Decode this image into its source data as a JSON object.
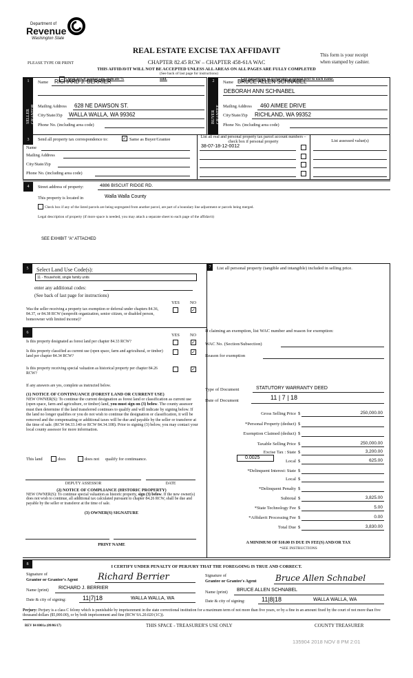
{
  "header": {
    "logo_line1": "Department of",
    "logo_line2": "Revenue",
    "logo_line3": "Washington State",
    "title": "REAL ESTATE EXCISE TAX AFFIDAVIT",
    "chapter": "CHAPTER 82.45 RCW – CHAPTER 458-61A WAC",
    "please": "PLEASE TYPE OR PRINT",
    "receipt1": "This form is your receipt",
    "receipt2": "when stamped by cashier.",
    "warning": "THIS AFFIDAVIT WILL NOT BE ACCEPTED UNLESS ALL AREAS ON ALL PAGES ARE FULLY COMPLETED",
    "see_back": "(See back of last page for instructions)",
    "partial": "Check box if partial sale, indicate %",
    "sold": "sold.",
    "percentage": "List percentage of ownership acquired next to each name."
  },
  "seller": {
    "num": "1",
    "side": "SELLER GRANTOR",
    "name_label": "Name",
    "name": "RICHARD J. BERRIER",
    "mail_label": "Mailing Address",
    "mail": "628 NE DAWSON ST.",
    "city_label": "City/State/Zip",
    "city": "WALLA WALLA, WA  99362",
    "phone_label": "Phone No. (including area code)"
  },
  "buyer": {
    "num": "2",
    "side": "BUYER GRANTEE",
    "name_label": "Name",
    "name": "BRUCE ALLEN SCHNABEL",
    "name2": "DEBORAH ANN SCHNABEL",
    "mail_label": "Mailing Address",
    "mail": "460 AIMEE DRIVE",
    "city_label": "City/State/Zip",
    "city": "RICHLAND, WA  99352",
    "phone_label": "Phone No. (including area code)"
  },
  "sec3": {
    "num": "3",
    "send": "Send all property tax correspondence to:",
    "same": "Same as Buyer/Grantee",
    "same_checked": true,
    "name": "Name",
    "mail": "Mailing Address",
    "city": "City/State/Zip",
    "phone": "Phone No. (including area code)",
    "parcel_header": "List all real and personal property tax parcel account numbers – check box if personal property",
    "assessed_header": "List assessed value(s)",
    "parcels": [
      "38-07-18-12-0012",
      "",
      "",
      ""
    ]
  },
  "sec4": {
    "num": "4",
    "street_label": "Street address of property:",
    "street": "4886 BISCUIT RIDGE RD.",
    "located_label": "This property is located in",
    "county": "Walla Walla County",
    "segregate": "Check box if any of the listed parcels are being segregated from another parcel, are part of a boundary line adjustment or parcels being merged.",
    "legal_label": "Legal description of property (if more space is needed, you may attach a separate sheet to each page of the affidavit)",
    "legal": "SEE EXHIBIT \"A\" ATTACHED"
  },
  "sec5": {
    "num": "5",
    "label": "Select Land Use Code(s):",
    "code": "11 - Household, single family units",
    "additional": "enter any additional codes:",
    "see_back": "(See back of last page for instructions)",
    "yes": "YES",
    "no": "NO",
    "question": "Was the seller receiving a property tax exemption or deferral under chapters 84.36, 84.37, or 84.38 RCW (nonprofit organization, senior citizen, or disabled person, homeowner with limited income)?",
    "answer": "NO"
  },
  "sec6": {
    "num": "6",
    "yes": "YES",
    "no": "NO",
    "questions": [
      {
        "text": "Is this property designated as forest land per chapter 84.33 RCW?",
        "answer": "NO"
      },
      {
        "text": "Is this property classified as current use (open space, farm and agricultural, or timber) land per chapter 84.34 RCW?",
        "answer": "NO"
      },
      {
        "text": "Is this property receiving special valuation as historical property per chapter 84.26 RCW?",
        "answer": "NO"
      }
    ],
    "if_yes": "If any answers are yes, complete as instructed below.",
    "notice1_title": "(1) NOTICE OF CONTINUANCE  (FOREST LAND OR CURRENT USE)",
    "notice1_a": "NEW OWNER(S): To continue the current designation as forest land or classification as current use (open space, farm and agriculture, or timber) land, ",
    "notice1_bold": "you must sign on (3) below",
    "notice1_b": ". The county assessor must then determine if the land transferred continues to qualify and will indicate by signing below. If the land no longer qualifies or you do not wish to continue the designation or classification, it will be removed and the compensating or additional taxes will be due and payable by the seller or transferor at the time of sale. (RCW 84.33.140 or RCW 84.34.108). Prior to signing (3) below, you may contact your local county assessor for more information.",
    "this_land": "This land",
    "does": "does",
    "does_not": "does not",
    "qualify": "qualify for continuance.",
    "deputy": "DEPUTY ASSESSOR",
    "date": "DATE",
    "notice2_title": "(2) NOTICE OF COMPLIANCE (HISTORIC PROPERTY)",
    "notice2_a": "NEW OWNER(S): To continue special valuation as historic property, ",
    "notice2_bold": "sign (3) below",
    "notice2_b": ". If the new owner(s) does not wish to continue, all additional tax calculated pursuant to chapter 84.26 RCW, shall be due and payable by the seller or transferor at the time of sale.",
    "owner_sig": "(3)  OWNER(S) SIGNATURE",
    "print_name": "PRINT NAME"
  },
  "sec7": {
    "num": "7",
    "personal": "List all  personal property (tangible and intangible) included in selling price.",
    "claiming": "If claiming an exemption, list WAC number and reason for exemption:",
    "wac": "WAC No. (Section/Subsection)",
    "reason": "Reason for exemption",
    "type_label": "Type of Document",
    "type": "STATUTORY WARRANTY DEED",
    "date_label": "Date of Document",
    "date": "11 | 7 | 18",
    "local_rate": "0.0025",
    "rows": [
      {
        "label": "Gross Selling Price",
        "value": "250,000.00"
      },
      {
        "label": "*Personal Property (deduct)",
        "value": ""
      },
      {
        "label": "Exemption Claimed (deduct)",
        "value": ""
      },
      {
        "label": "Taxable Selling Price",
        "value": "250,000.00"
      },
      {
        "label": "Excise Tax : State",
        "value": "3,200.00"
      },
      {
        "label": "Local",
        "value": "625.00"
      },
      {
        "label": "*Delinquent Interest: State",
        "value": ""
      },
      {
        "label": "Local",
        "value": ""
      },
      {
        "label": "*Delinquent Penalty",
        "value": ""
      },
      {
        "label": "Subtotal",
        "value": "3,825.00"
      },
      {
        "label": "*State Technology Fee",
        "value": "5.00"
      },
      {
        "label": "*Affidavit Processing Fee",
        "value": "0.00"
      },
      {
        "label": "Total Due",
        "value": "3,830.00"
      }
    ],
    "dollar": "$",
    "minimum": "A MINIMUM OF $10.00 IS DUE IN FEE(S) AND/OR TAX",
    "see_instr": "*SEE INSTRUCTIONS"
  },
  "sec8": {
    "num": "8",
    "certify": "I CERTIFY UNDER PENALTY OF PERJURY THAT THE FOREGOING IS TRUE AND CORRECT.",
    "grantor_sig1": "Signature of",
    "grantor_sig2": "Grantor or Grantor's Agent",
    "grantor_signature": "Richard Berrier",
    "grantor_name_label": "Name (print)",
    "grantor_name": "RICHARD J. BERRIER",
    "grantor_date_label": "Date & city of signing:",
    "grantor_date": "11|7|18",
    "grantor_city": "WALLA WALLA, WA",
    "grantee_sig1": "Signature of",
    "grantee_sig2": "Grantee or Grantee's Agent",
    "grantee_signature": "Bruce Allen Schnabel",
    "grantee_name_label": "Name (print)",
    "grantee_name": "BRUCE ALLEN SCHNABEL",
    "grantee_date_label": "Date & city of signing:",
    "grantee_date": "11|8|18",
    "grantee_city": "WALLA WALLA, WA"
  },
  "perjury": {
    "label": "Perjury:",
    "text": " Perjury is a class C felony which is punishable by imprisonment in the state correctional institution for a maximum term of not more than five years, or by a fine in an amount fixed by the court of not more than five thousand dollars ($5,000.00), or by both imprisonment and fine (RCW 9A.20.020 (1C))."
  },
  "footer": {
    "rev": "REV 84 0001a (09/06/17)",
    "treasurer_use": "THIS SPACE - TREASURER'S USE ONLY",
    "county_treasurer": "COUNTY TREASURER",
    "stamp": "135904 2018 NOV 8 PM 2:01"
  }
}
